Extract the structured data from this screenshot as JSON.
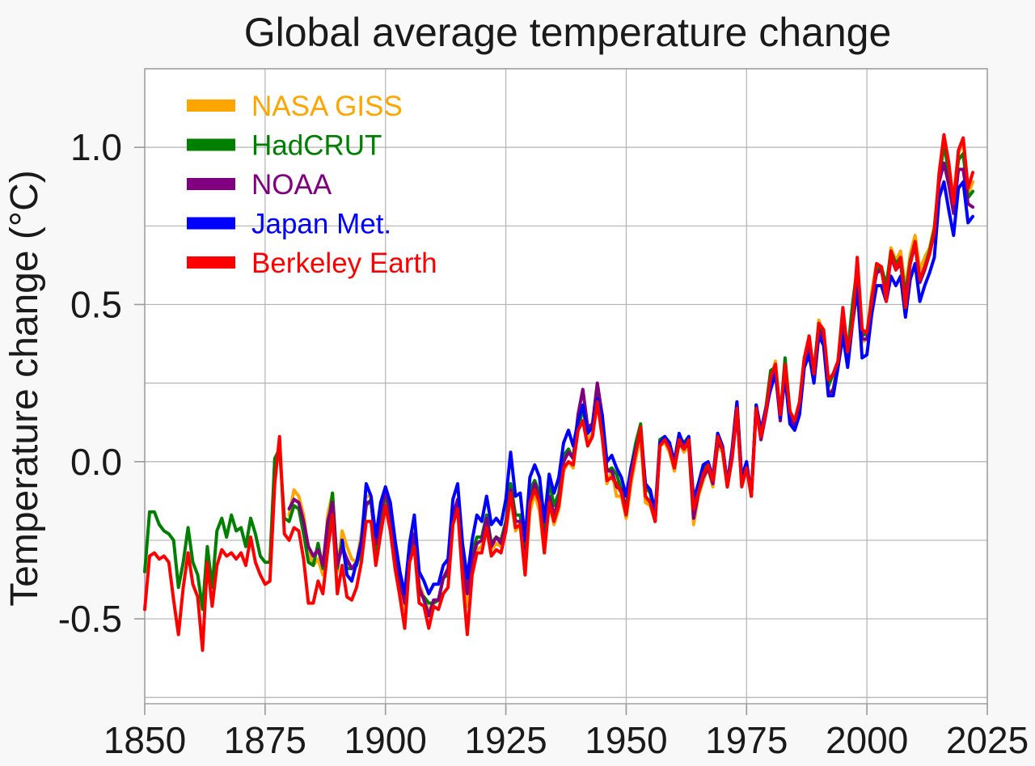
{
  "chart_data": {
    "type": "line",
    "title": "Global average temperature change",
    "xlabel": "",
    "ylabel": "Temperature change (°C)",
    "xlim": [
      1850,
      2025
    ],
    "ylim": [
      -0.77,
      1.25
    ],
    "x_tick_values": [
      1850,
      1875,
      1900,
      1925,
      1950,
      1975,
      2000,
      2025
    ],
    "x_tick_labels": [
      "1850",
      "1875",
      "1900",
      "1925",
      "1950",
      "1975",
      "2000",
      "2025"
    ],
    "y_tick_values": [
      1.0,
      0.5,
      0.0,
      -0.5
    ],
    "y_tick_labels": [
      "1.0",
      "0.5",
      "0.0",
      "-0.5"
    ],
    "x_grid_step": 25,
    "y_grid_step": 0.25,
    "grid": true,
    "legend_position": "upper left",
    "background_color": "#f8f8f8",
    "plot_background_color": "#ffffff",
    "grid_color": "#b3b3b3",
    "axis_color": "#999999",
    "text_color": "#1a1a1a",
    "series": [
      {
        "name": "NASA GISS",
        "color": "#FFA500",
        "start_year": 1880,
        "end_year": 2022,
        "values": [
          -0.17,
          -0.09,
          -0.11,
          -0.17,
          -0.28,
          -0.33,
          -0.31,
          -0.36,
          -0.17,
          -0.1,
          -0.35,
          -0.22,
          -0.27,
          -0.31,
          -0.32,
          -0.23,
          -0.11,
          -0.11,
          -0.27,
          -0.18,
          -0.08,
          -0.15,
          -0.28,
          -0.37,
          -0.47,
          -0.26,
          -0.22,
          -0.39,
          -0.43,
          -0.48,
          -0.44,
          -0.44,
          -0.37,
          -0.35,
          -0.15,
          -0.14,
          -0.36,
          -0.46,
          -0.3,
          -0.28,
          -0.27,
          -0.19,
          -0.28,
          -0.26,
          -0.27,
          -0.22,
          -0.11,
          -0.22,
          -0.2,
          -0.36,
          -0.16,
          -0.1,
          -0.16,
          -0.29,
          -0.13,
          -0.2,
          -0.15,
          -0.03,
          0.0,
          -0.02,
          0.13,
          0.18,
          0.07,
          0.09,
          0.2,
          0.09,
          -0.07,
          -0.03,
          -0.11,
          -0.11,
          -0.18,
          -0.07,
          0.01,
          0.08,
          -0.13,
          -0.14,
          -0.19,
          0.05,
          0.06,
          0.03,
          -0.03,
          0.06,
          0.03,
          0.05,
          -0.2,
          -0.11,
          -0.06,
          -0.02,
          -0.08,
          0.05,
          0.03,
          -0.08,
          0.01,
          0.16,
          -0.07,
          -0.01,
          -0.1,
          0.18,
          0.07,
          0.16,
          0.26,
          0.32,
          0.14,
          0.31,
          0.16,
          0.12,
          0.18,
          0.32,
          0.39,
          0.27,
          0.45,
          0.41,
          0.22,
          0.23,
          0.32,
          0.45,
          0.33,
          0.46,
          0.61,
          0.38,
          0.39,
          0.54,
          0.63,
          0.62,
          0.54,
          0.68,
          0.64,
          0.67,
          0.55,
          0.66,
          0.72,
          0.61,
          0.65,
          0.68,
          0.75,
          0.9,
          1.01,
          0.92,
          0.85,
          0.98,
          1.02,
          0.85,
          0.89
        ]
      },
      {
        "name": "HadCRUT",
        "color": "#008000",
        "start_year": 1850,
        "end_year": 2022,
        "values": [
          -0.35,
          -0.16,
          -0.16,
          -0.2,
          -0.22,
          -0.23,
          -0.25,
          -0.4,
          -0.32,
          -0.21,
          -0.32,
          -0.36,
          -0.47,
          -0.27,
          -0.4,
          -0.22,
          -0.18,
          -0.24,
          -0.17,
          -0.22,
          -0.21,
          -0.27,
          -0.18,
          -0.23,
          -0.3,
          -0.32,
          -0.32,
          0.01,
          0.04,
          -0.18,
          -0.19,
          -0.14,
          -0.15,
          -0.23,
          -0.32,
          -0.33,
          -0.26,
          -0.34,
          -0.22,
          -0.1,
          -0.34,
          -0.25,
          -0.34,
          -0.34,
          -0.33,
          -0.28,
          -0.14,
          -0.12,
          -0.29,
          -0.19,
          -0.1,
          -0.18,
          -0.3,
          -0.39,
          -0.44,
          -0.3,
          -0.24,
          -0.42,
          -0.43,
          -0.45,
          -0.45,
          -0.44,
          -0.37,
          -0.36,
          -0.18,
          -0.12,
          -0.31,
          -0.4,
          -0.29,
          -0.24,
          -0.24,
          -0.17,
          -0.26,
          -0.24,
          -0.25,
          -0.19,
          -0.07,
          -0.17,
          -0.17,
          -0.3,
          -0.09,
          -0.06,
          -0.1,
          -0.25,
          -0.06,
          -0.14,
          -0.1,
          0.02,
          0.04,
          0.01,
          0.1,
          0.17,
          0.1,
          0.11,
          0.23,
          0.12,
          -0.03,
          -0.02,
          -0.04,
          -0.09,
          -0.15,
          -0.02,
          0.06,
          0.12,
          -0.08,
          -0.1,
          -0.19,
          0.07,
          0.08,
          0.06,
          -0.02,
          0.08,
          0.06,
          0.08,
          -0.14,
          -0.08,
          -0.02,
          -0.01,
          -0.06,
          0.09,
          0.05,
          -0.07,
          0.03,
          0.19,
          -0.06,
          -0.01,
          -0.11,
          0.18,
          0.09,
          0.17,
          0.29,
          0.3,
          0.14,
          0.33,
          0.16,
          0.13,
          0.19,
          0.33,
          0.38,
          0.29,
          0.44,
          0.41,
          0.24,
          0.28,
          0.32,
          0.46,
          0.35,
          0.5,
          0.62,
          0.4,
          0.41,
          0.52,
          0.61,
          0.62,
          0.56,
          0.67,
          0.63,
          0.65,
          0.53,
          0.64,
          0.7,
          0.58,
          0.62,
          0.67,
          0.74,
          0.9,
          1.01,
          0.92,
          0.83,
          0.96,
          0.98,
          0.84,
          0.86
        ]
      },
      {
        "name": "NOAA",
        "color": "#800080",
        "start_year": 1880,
        "end_year": 2022,
        "values": [
          -0.15,
          -0.12,
          -0.13,
          -0.19,
          -0.27,
          -0.3,
          -0.28,
          -0.33,
          -0.19,
          -0.13,
          -0.33,
          -0.27,
          -0.31,
          -0.34,
          -0.32,
          -0.25,
          -0.13,
          -0.13,
          -0.26,
          -0.16,
          -0.09,
          -0.16,
          -0.28,
          -0.37,
          -0.45,
          -0.28,
          -0.23,
          -0.4,
          -0.44,
          -0.49,
          -0.44,
          -0.44,
          -0.37,
          -0.34,
          -0.17,
          -0.12,
          -0.32,
          -0.42,
          -0.31,
          -0.26,
          -0.25,
          -0.18,
          -0.27,
          -0.24,
          -0.26,
          -0.2,
          -0.09,
          -0.19,
          -0.19,
          -0.33,
          -0.13,
          -0.07,
          -0.13,
          -0.27,
          -0.11,
          -0.17,
          -0.12,
          0.0,
          0.03,
          0.01,
          0.15,
          0.23,
          0.11,
          0.12,
          0.25,
          0.15,
          -0.03,
          -0.03,
          -0.08,
          -0.09,
          -0.16,
          -0.05,
          0.03,
          0.1,
          -0.11,
          -0.13,
          -0.19,
          0.05,
          0.07,
          0.04,
          -0.02,
          0.06,
          0.04,
          0.06,
          -0.18,
          -0.1,
          -0.05,
          -0.02,
          -0.07,
          0.06,
          0.04,
          -0.08,
          0.01,
          0.16,
          -0.07,
          -0.01,
          -0.1,
          0.17,
          0.07,
          0.15,
          0.24,
          0.29,
          0.13,
          0.29,
          0.14,
          0.11,
          0.17,
          0.31,
          0.37,
          0.26,
          0.42,
          0.39,
          0.21,
          0.23,
          0.31,
          0.44,
          0.31,
          0.45,
          0.6,
          0.39,
          0.39,
          0.52,
          0.6,
          0.61,
          0.53,
          0.65,
          0.61,
          0.63,
          0.51,
          0.63,
          0.69,
          0.57,
          0.61,
          0.66,
          0.73,
          0.89,
          0.95,
          0.88,
          0.79,
          0.93,
          0.93,
          0.82,
          0.81
        ]
      },
      {
        "name": "Japan Met.",
        "color": "#0000FF",
        "start_year": 1891,
        "end_year": 2022,
        "values": [
          -0.25,
          -0.36,
          -0.38,
          -0.32,
          -0.26,
          -0.07,
          -0.11,
          -0.24,
          -0.13,
          -0.08,
          -0.13,
          -0.25,
          -0.35,
          -0.42,
          -0.26,
          -0.17,
          -0.35,
          -0.38,
          -0.42,
          -0.39,
          -0.39,
          -0.33,
          -0.31,
          -0.12,
          -0.07,
          -0.26,
          -0.37,
          -0.25,
          -0.17,
          -0.19,
          -0.11,
          -0.2,
          -0.18,
          -0.2,
          -0.12,
          0.03,
          -0.11,
          -0.1,
          -0.25,
          -0.05,
          -0.01,
          -0.05,
          -0.19,
          -0.04,
          -0.1,
          -0.05,
          0.06,
          0.1,
          0.05,
          0.13,
          0.18,
          0.09,
          0.11,
          0.2,
          0.15,
          0.0,
          0.02,
          -0.02,
          -0.05,
          -0.11,
          -0.02,
          0.04,
          0.1,
          -0.07,
          -0.09,
          -0.16,
          0.06,
          0.08,
          0.06,
          0.0,
          0.09,
          0.05,
          0.08,
          -0.12,
          -0.07,
          -0.01,
          0.0,
          -0.05,
          0.09,
          0.05,
          -0.07,
          0.04,
          0.19,
          -0.05,
          0.0,
          -0.11,
          0.18,
          0.1,
          0.17,
          0.23,
          0.28,
          0.14,
          0.27,
          0.12,
          0.1,
          0.15,
          0.3,
          0.34,
          0.25,
          0.4,
          0.37,
          0.21,
          0.21,
          0.3,
          0.4,
          0.3,
          0.44,
          0.55,
          0.33,
          0.34,
          0.47,
          0.56,
          0.56,
          0.51,
          0.59,
          0.56,
          0.59,
          0.46,
          0.58,
          0.63,
          0.51,
          0.56,
          0.6,
          0.65,
          0.84,
          0.89,
          0.8,
          0.72,
          0.87,
          0.89,
          0.76,
          0.78
        ]
      },
      {
        "name": "Berkeley Earth",
        "color": "#FF0000",
        "start_year": 1850,
        "end_year": 2022,
        "values": [
          -0.47,
          -0.3,
          -0.29,
          -0.31,
          -0.3,
          -0.32,
          -0.44,
          -0.55,
          -0.4,
          -0.29,
          -0.39,
          -0.43,
          -0.6,
          -0.32,
          -0.46,
          -0.33,
          -0.28,
          -0.3,
          -0.29,
          -0.31,
          -0.29,
          -0.33,
          -0.24,
          -0.32,
          -0.36,
          -0.39,
          -0.38,
          -0.07,
          0.08,
          -0.23,
          -0.25,
          -0.21,
          -0.22,
          -0.31,
          -0.45,
          -0.45,
          -0.38,
          -0.42,
          -0.28,
          -0.17,
          -0.42,
          -0.33,
          -0.43,
          -0.44,
          -0.4,
          -0.32,
          -0.19,
          -0.19,
          -0.33,
          -0.23,
          -0.14,
          -0.22,
          -0.34,
          -0.43,
          -0.53,
          -0.32,
          -0.27,
          -0.45,
          -0.46,
          -0.53,
          -0.46,
          -0.47,
          -0.42,
          -0.4,
          -0.2,
          -0.15,
          -0.37,
          -0.55,
          -0.36,
          -0.29,
          -0.29,
          -0.21,
          -0.3,
          -0.28,
          -0.29,
          -0.22,
          -0.1,
          -0.21,
          -0.2,
          -0.36,
          -0.13,
          -0.09,
          -0.13,
          -0.29,
          -0.13,
          -0.19,
          -0.14,
          -0.02,
          0.0,
          -0.01,
          0.1,
          0.13,
          0.05,
          0.08,
          0.19,
          0.08,
          -0.06,
          -0.05,
          -0.07,
          -0.1,
          -0.17,
          -0.05,
          0.03,
          0.11,
          -0.11,
          -0.13,
          -0.19,
          0.05,
          0.07,
          0.04,
          -0.02,
          0.07,
          0.04,
          0.07,
          -0.15,
          -0.1,
          -0.04,
          -0.01,
          -0.06,
          0.08,
          0.04,
          -0.08,
          0.02,
          0.17,
          -0.08,
          -0.02,
          -0.11,
          0.17,
          0.08,
          0.16,
          0.27,
          0.31,
          0.15,
          0.31,
          0.16,
          0.13,
          0.19,
          0.33,
          0.4,
          0.28,
          0.44,
          0.42,
          0.26,
          0.28,
          0.32,
          0.49,
          0.35,
          0.44,
          0.65,
          0.42,
          0.41,
          0.51,
          0.63,
          0.62,
          0.51,
          0.67,
          0.61,
          0.65,
          0.49,
          0.63,
          0.7,
          0.58,
          0.62,
          0.66,
          0.73,
          0.92,
          1.04,
          0.95,
          0.82,
          0.99,
          1.03,
          0.87,
          0.92
        ]
      }
    ]
  }
}
